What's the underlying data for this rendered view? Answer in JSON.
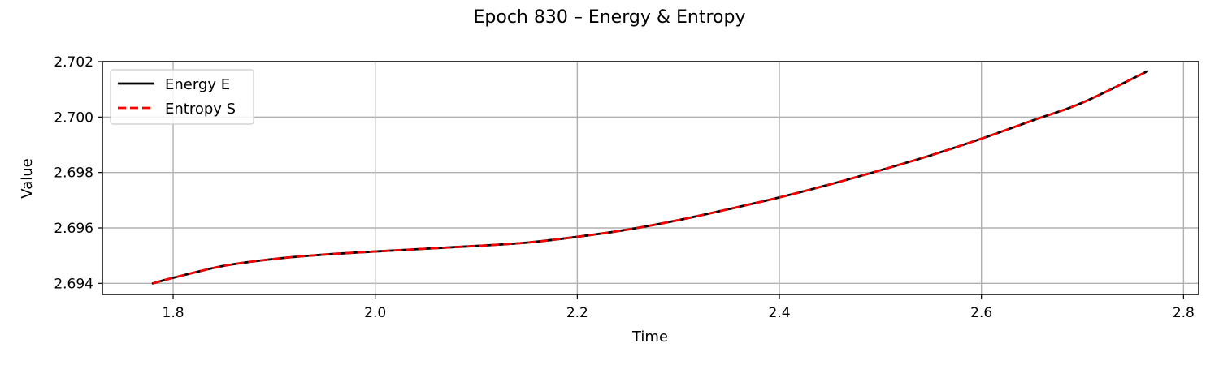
{
  "chart_data": {
    "type": "line",
    "title": "Epoch 830 – Energy & Entropy",
    "xlabel": "Time",
    "ylabel": "Value",
    "xlim": [
      1.73,
      2.815
    ],
    "ylim": [
      2.6936,
      2.702
    ],
    "xticks": [
      1.8,
      2.0,
      2.2,
      2.4,
      2.6,
      2.8
    ],
    "xtick_labels": [
      "1.8",
      "2.0",
      "2.2",
      "2.4",
      "2.6",
      "2.8"
    ],
    "yticks": [
      2.694,
      2.696,
      2.698,
      2.7,
      2.702
    ],
    "ytick_labels": [
      "2.694",
      "2.696",
      "2.698",
      "2.700",
      "2.702"
    ],
    "grid": true,
    "legend_position": "top-left",
    "x": [
      1.78,
      1.8,
      1.85,
      1.9,
      1.95,
      2.0,
      2.05,
      2.1,
      2.15,
      2.2,
      2.25,
      2.3,
      2.35,
      2.4,
      2.45,
      2.5,
      2.55,
      2.6,
      2.65,
      2.7,
      2.764
    ],
    "series": [
      {
        "name": "Energy E",
        "color": "#000000",
        "style": "solid",
        "values": [
          2.694,
          2.6942,
          2.69463,
          2.69488,
          2.69504,
          2.69515,
          2.69525,
          2.69535,
          2.69547,
          2.69568,
          2.69594,
          2.69628,
          2.69668,
          2.6971,
          2.69757,
          2.69808,
          2.69862,
          2.69922,
          2.69987,
          2.70052,
          2.70165
        ]
      },
      {
        "name": "Entropy S",
        "color": "#ff0000",
        "style": "dashed",
        "values": [
          2.694,
          2.6942,
          2.69463,
          2.69488,
          2.69504,
          2.69515,
          2.69525,
          2.69535,
          2.69547,
          2.69568,
          2.69594,
          2.69628,
          2.69668,
          2.6971,
          2.69757,
          2.69808,
          2.69862,
          2.69922,
          2.69987,
          2.70052,
          2.70165
        ]
      }
    ]
  }
}
